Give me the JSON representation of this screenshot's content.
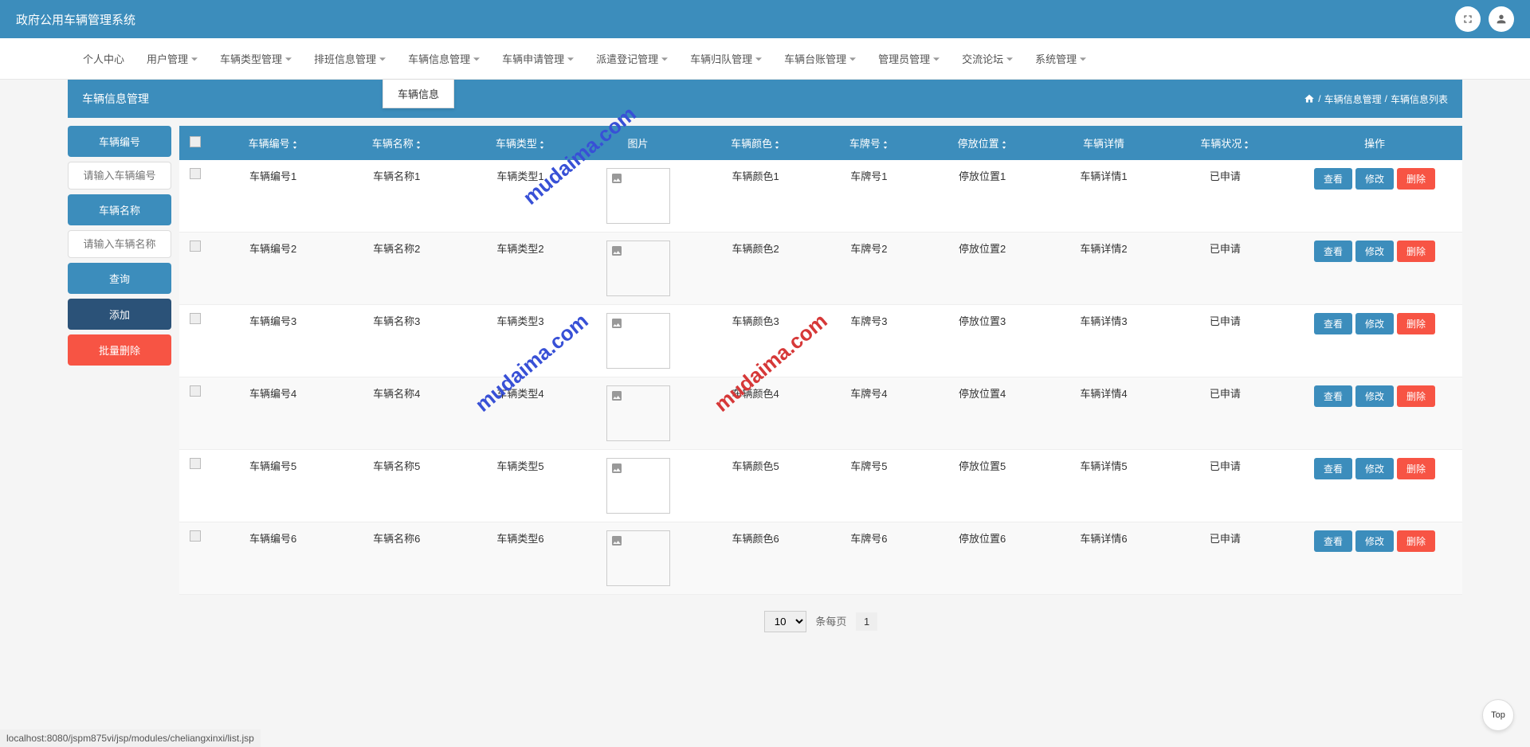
{
  "app_title": "政府公用车辆管理系统",
  "nav": {
    "items": [
      "个人中心",
      "用户管理",
      "车辆类型管理",
      "排班信息管理",
      "车辆信息管理",
      "车辆申请管理",
      "派遣登记管理",
      "车辆归队管理",
      "车辆台账管理",
      "管理员管理",
      "交流论坛",
      "系统管理"
    ],
    "dropdown": "车辆信息"
  },
  "page": {
    "title": "车辆信息管理",
    "breadcrumb": [
      "车辆信息管理",
      "车辆信息列表"
    ]
  },
  "sidebar": {
    "btn_code": "车辆编号",
    "placeholder_code": "请输入车辆编号",
    "btn_name": "车辆名称",
    "placeholder_name": "请输入车辆名称",
    "btn_query": "查询",
    "btn_add": "添加",
    "btn_bulkdel": "批量删除"
  },
  "table": {
    "headers": [
      "车辆编号",
      "车辆名称",
      "车辆类型",
      "图片",
      "车辆颜色",
      "车牌号",
      "停放位置",
      "车辆详情",
      "车辆状况",
      "操作"
    ],
    "actions": {
      "view": "查看",
      "edit": "修改",
      "del": "删除"
    },
    "rows": [
      {
        "code": "车辆编号1",
        "name": "车辆名称1",
        "type": "车辆类型1",
        "color": "车辆颜色1",
        "plate": "车牌号1",
        "loc": "停放位置1",
        "detail": "车辆详情1",
        "status": "已申请"
      },
      {
        "code": "车辆编号2",
        "name": "车辆名称2",
        "type": "车辆类型2",
        "color": "车辆颜色2",
        "plate": "车牌号2",
        "loc": "停放位置2",
        "detail": "车辆详情2",
        "status": "已申请"
      },
      {
        "code": "车辆编号3",
        "name": "车辆名称3",
        "type": "车辆类型3",
        "color": "车辆颜色3",
        "plate": "车牌号3",
        "loc": "停放位置3",
        "detail": "车辆详情3",
        "status": "已申请"
      },
      {
        "code": "车辆编号4",
        "name": "车辆名称4",
        "type": "车辆类型4",
        "color": "车辆颜色4",
        "plate": "车牌号4",
        "loc": "停放位置4",
        "detail": "车辆详情4",
        "status": "已申请"
      },
      {
        "code": "车辆编号5",
        "name": "车辆名称5",
        "type": "车辆类型5",
        "color": "车辆颜色5",
        "plate": "车牌号5",
        "loc": "停放位置5",
        "detail": "车辆详情5",
        "status": "已申请"
      },
      {
        "code": "车辆编号6",
        "name": "车辆名称6",
        "type": "车辆类型6",
        "color": "车辆颜色6",
        "plate": "车牌号6",
        "loc": "停放位置6",
        "detail": "车辆详情6",
        "status": "已申请"
      }
    ]
  },
  "pager": {
    "size": "10",
    "label": "条每页",
    "page": "1"
  },
  "top_btn": "Top",
  "statusbar": "localhost:8080/jspm875vi/jsp/modules/cheliangxinxi/list.jsp",
  "watermark": "mudaima.com",
  "colors": {
    "primary": "#3c8dbc",
    "danger": "#f75444",
    "darkblue": "#2b5278",
    "wm_blue": "#3850d6",
    "wm_red": "#d63838"
  }
}
